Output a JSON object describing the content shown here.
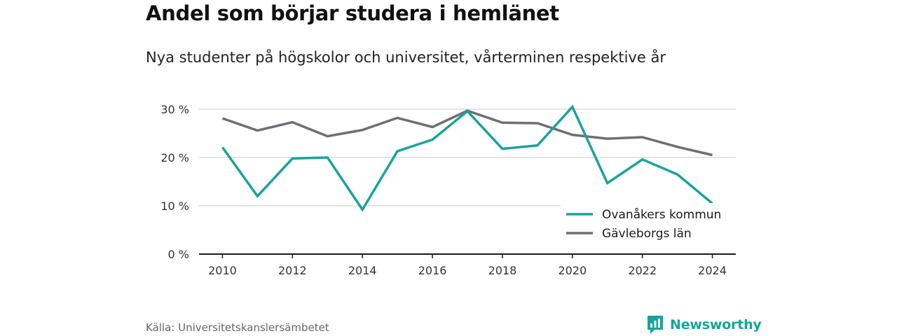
{
  "header": {
    "title": "Andel som börjar studera i hemlänet",
    "subtitle": "Nya studenter på högskolor och universitet, vårterminen respektive år"
  },
  "chart_data": {
    "type": "line",
    "x": [
      2010,
      2011,
      2012,
      2013,
      2014,
      2015,
      2016,
      2017,
      2018,
      2019,
      2020,
      2021,
      2022,
      2023,
      2024
    ],
    "x_tick_labels": [
      "2010",
      "2012",
      "2014",
      "2016",
      "2018",
      "2020",
      "2022",
      "2024"
    ],
    "y_tick_labels": [
      "0 %",
      "10 %",
      "20 %",
      "30 %"
    ],
    "ylim": [
      0,
      30
    ],
    "grid": true,
    "legend_position": "bottom-right",
    "series": [
      {
        "name": "Ovanåkers kommun",
        "color": "#1aa39a",
        "values": [
          22.1,
          12.0,
          19.8,
          20.0,
          9.2,
          21.3,
          23.7,
          29.6,
          21.8,
          22.5,
          30.5,
          14.7,
          19.6,
          16.5,
          10.5
        ]
      },
      {
        "name": "Gävleborgs län",
        "color": "#6e6e73",
        "values": [
          28.1,
          25.6,
          27.3,
          24.4,
          25.7,
          28.2,
          26.3,
          29.7,
          27.2,
          27.1,
          24.7,
          23.9,
          24.2,
          22.2,
          20.5
        ]
      }
    ]
  },
  "footer": {
    "source": "Källa: Universitetskanslersämbetet",
    "brand": "Newsworthy",
    "brand_color": "#14a59a",
    "brand_icon": "bar-chart-speech-bubble-icon"
  }
}
